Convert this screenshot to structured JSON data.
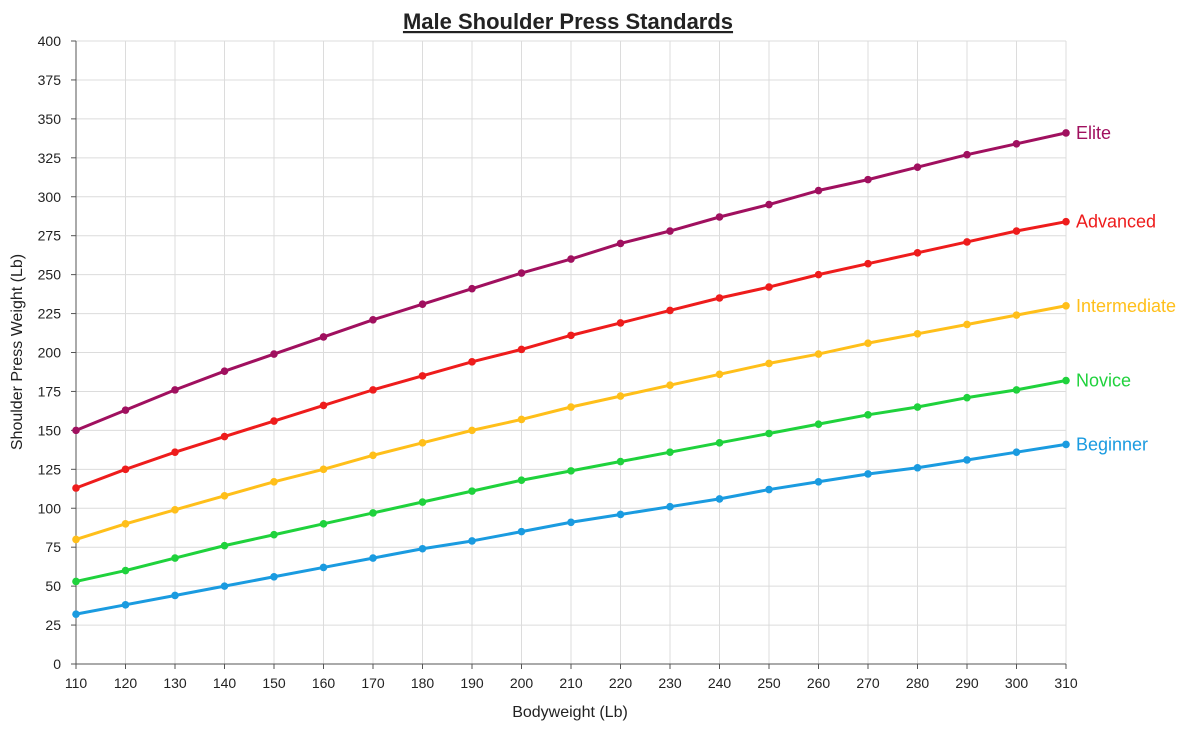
{
  "chart_data": {
    "type": "line",
    "title": "Male Shoulder Press Standards",
    "xlabel": "Bodyweight (Lb)",
    "ylabel": "Shoulder Press Weight (Lb)",
    "x": [
      110,
      120,
      130,
      140,
      150,
      160,
      170,
      180,
      190,
      200,
      210,
      220,
      230,
      240,
      250,
      260,
      270,
      280,
      290,
      300,
      310
    ],
    "xlim": [
      110,
      310
    ],
    "ylim": [
      0,
      400
    ],
    "x_ticks": [
      110,
      120,
      130,
      140,
      150,
      160,
      170,
      180,
      190,
      200,
      210,
      220,
      230,
      240,
      250,
      260,
      270,
      280,
      290,
      300,
      310
    ],
    "y_ticks": [
      0,
      25,
      50,
      75,
      100,
      125,
      150,
      175,
      200,
      225,
      250,
      275,
      300,
      325,
      350,
      375,
      400
    ],
    "grid": true,
    "legend": "inline-right-end-labels",
    "series": [
      {
        "name": "Beginner",
        "color": "#1a9be0",
        "values": [
          32,
          38,
          44,
          50,
          56,
          62,
          68,
          74,
          79,
          85,
          91,
          96,
          101,
          106,
          112,
          117,
          122,
          126,
          131,
          136,
          141
        ]
      },
      {
        "name": "Novice",
        "color": "#1fd23c",
        "values": [
          53,
          60,
          68,
          76,
          83,
          90,
          97,
          104,
          111,
          118,
          124,
          130,
          136,
          142,
          148,
          154,
          160,
          165,
          171,
          176,
          182
        ]
      },
      {
        "name": "Intermediate",
        "color": "#ffbf1a",
        "values": [
          80,
          90,
          99,
          108,
          117,
          125,
          134,
          142,
          150,
          157,
          165,
          172,
          179,
          186,
          193,
          199,
          206,
          212,
          218,
          224,
          230
        ]
      },
      {
        "name": "Advanced",
        "color": "#ee1c1c",
        "values": [
          113,
          125,
          136,
          146,
          156,
          166,
          176,
          185,
          194,
          202,
          211,
          219,
          227,
          235,
          242,
          250,
          257,
          264,
          271,
          278,
          284
        ]
      },
      {
        "name": "Elite",
        "color": "#a0105f",
        "values": [
          150,
          163,
          176,
          188,
          199,
          210,
          221,
          231,
          241,
          251,
          260,
          270,
          278,
          287,
          295,
          304,
          311,
          319,
          327,
          334,
          341
        ]
      }
    ]
  }
}
